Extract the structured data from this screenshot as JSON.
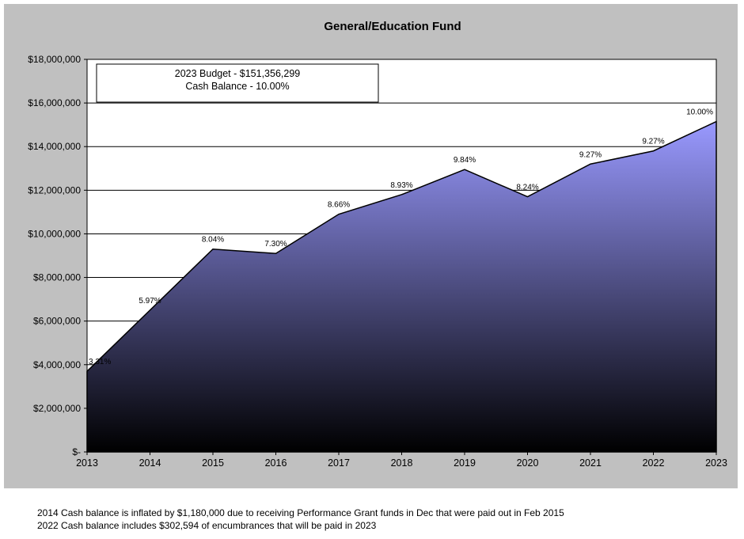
{
  "chart_data": {
    "type": "area",
    "title": "General/Education Fund",
    "x": [
      "2013",
      "2014",
      "2015",
      "2016",
      "2017",
      "2018",
      "2019",
      "2020",
      "2021",
      "2022",
      "2023"
    ],
    "values": [
      3700000,
      6500000,
      9300000,
      9100000,
      10900000,
      11800000,
      12950000,
      11700000,
      13200000,
      13800000,
      15150000
    ],
    "data_labels": [
      "3.31%",
      "5.97%",
      "8.04%",
      "7.30%",
      "8.66%",
      "8.93%",
      "9.84%",
      "8.24%",
      "9.27%",
      "9.27%",
      "10.00%"
    ],
    "ylim": [
      0,
      18000000
    ],
    "yticks": [
      0,
      2000000,
      4000000,
      6000000,
      8000000,
      10000000,
      12000000,
      14000000,
      16000000,
      18000000
    ],
    "ytick_labels": [
      "$-",
      "$2,000,000",
      "$4,000,000",
      "$6,000,000",
      "$8,000,000",
      "$10,000,000",
      "$12,000,000",
      "$14,000,000",
      "$16,000,000",
      "$18,000,000"
    ],
    "grid": true,
    "fill_gradient": [
      "#9999ff",
      "#000000"
    ],
    "annotation": [
      "2023 Budget - $151,356,299",
      "Cash Balance - 10.00%"
    ],
    "annotation_position": "top-left"
  },
  "footnotes": [
    "2014 Cash balance is inflated by $1,180,000 due to receiving Performance Grant funds in Dec that were paid out in Feb 2015",
    "2022 Cash balance includes $302,594 of encumbrances that will be paid in 2023"
  ]
}
